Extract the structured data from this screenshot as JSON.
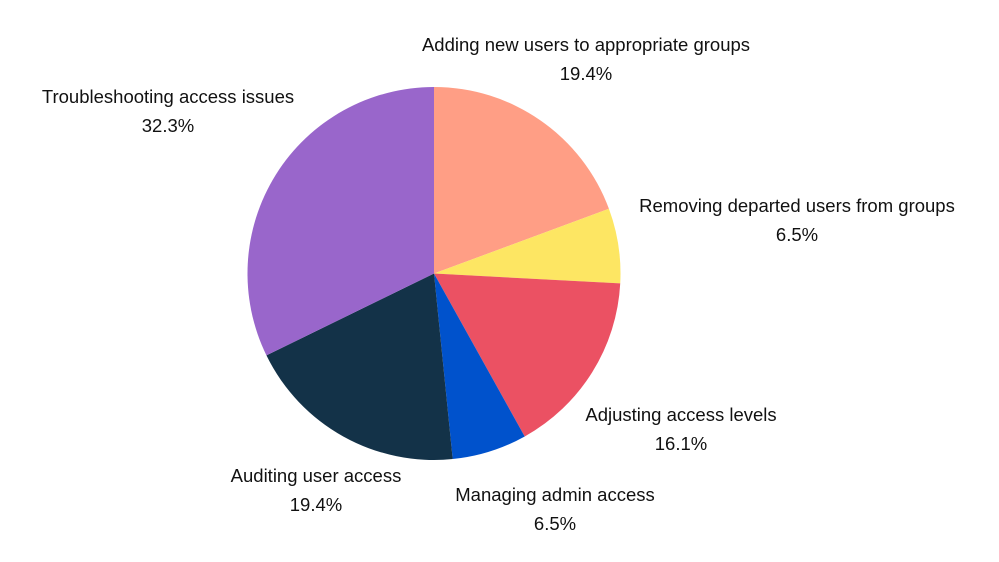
{
  "chart_data": {
    "type": "pie",
    "title": "",
    "start_angle": "top (12 o'clock), clockwise",
    "legend": "none (direct labels)",
    "slices": [
      {
        "label": "Adding new users to appropriate groups",
        "value": 19.4,
        "display": "19.4%",
        "color": "#FF9E85"
      },
      {
        "label": "Removing departed users from groups",
        "value": 6.5,
        "display": "6.5%",
        "color": "#FDE663"
      },
      {
        "label": "Adjusting access levels",
        "value": 16.1,
        "display": "16.1%",
        "color": "#EB5163"
      },
      {
        "label": "Managing admin access",
        "value": 6.5,
        "display": "6.5%",
        "color": "#0052CC"
      },
      {
        "label": "Auditing user access",
        "value": 19.4,
        "display": "19.4%",
        "color": "#133248"
      },
      {
        "label": "Troubleshooting access issues",
        "value": 32.3,
        "display": "32.3%",
        "color": "#9966CB"
      }
    ]
  }
}
